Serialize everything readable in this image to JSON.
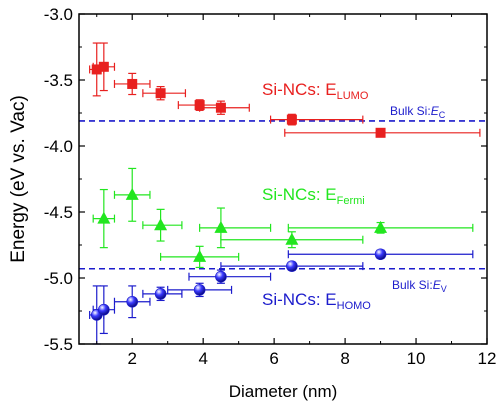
{
  "chart_data": {
    "type": "scatter",
    "title": "",
    "xlabel": "Diameter (nm)",
    "ylabel": "Energy (eV vs. Vac)",
    "xlim": [
      0.5,
      12
    ],
    "ylim": [
      -5.5,
      -3.0
    ],
    "x_ticks": [
      2,
      4,
      6,
      8,
      10,
      12
    ],
    "y_ticks": [
      -3.0,
      -3.5,
      -4.0,
      -4.5,
      -5.0,
      -5.5
    ],
    "x_tick_labels": [
      "2",
      "4",
      "6",
      "8",
      "10",
      "12"
    ],
    "y_tick_labels": [
      "-3.0",
      "-3.5",
      "-4.0",
      "-4.5",
      "-5.0",
      "-5.5"
    ],
    "grid": false,
    "series": [
      {
        "name": "Si-NCs: E_LUMO",
        "label_main": "Si-NCs: E",
        "label_sub": "LUMO",
        "color": "#e8201f",
        "marker": "square",
        "points": [
          {
            "x": 1.0,
            "y": -3.42,
            "xerr": [
              0.2,
              0.2
            ],
            "yerr": [
              0.2,
              0.2
            ]
          },
          {
            "x": 1.2,
            "y": -3.4,
            "xerr": [
              0.3,
              0.3
            ],
            "yerr": [
              0.18,
              0.18
            ]
          },
          {
            "x": 2.0,
            "y": -3.53,
            "xerr": [
              0.5,
              0.5
            ],
            "yerr": [
              0.08,
              0.08
            ]
          },
          {
            "x": 2.8,
            "y": -3.6,
            "xerr": [
              0.5,
              0.7
            ],
            "yerr": [
              0.05,
              0.05
            ]
          },
          {
            "x": 3.9,
            "y": -3.69,
            "xerr": [
              0.6,
              0.6
            ],
            "yerr": [
              0.04,
              0.04
            ]
          },
          {
            "x": 4.5,
            "y": -3.71,
            "xerr": [
              0.6,
              0.8
            ],
            "yerr": [
              0.05,
              0.05
            ]
          },
          {
            "x": 6.5,
            "y": -3.8,
            "xerr": [
              0.6,
              2.0
            ],
            "yerr": [
              0.04,
              0.04
            ]
          },
          {
            "x": 9.0,
            "y": -3.9,
            "xerr": [
              2.7,
              2.8
            ],
            "yerr": [
              0.03,
              0.03
            ]
          }
        ]
      },
      {
        "name": "Si-NCs: E_Fermi",
        "label_main": "Si-NCs: E",
        "label_sub": "Fermi",
        "color": "#22e61f",
        "marker": "triangle",
        "points": [
          {
            "x": 1.2,
            "y": -4.55,
            "xerr": [
              0.3,
              0.3
            ],
            "yerr": [
              0.22,
              0.22
            ]
          },
          {
            "x": 2.0,
            "y": -4.37,
            "xerr": [
              0.5,
              0.5
            ],
            "yerr": [
              0.2,
              0.2
            ]
          },
          {
            "x": 2.8,
            "y": -4.6,
            "xerr": [
              0.5,
              0.6
            ],
            "yerr": [
              0.12,
              0.12
            ]
          },
          {
            "x": 3.9,
            "y": -4.84,
            "xerr": [
              1.1,
              1.1
            ],
            "yerr": [
              0.08,
              0.08
            ]
          },
          {
            "x": 4.5,
            "y": -4.62,
            "xerr": [
              0.6,
              1.4
            ],
            "yerr": [
              0.15,
              0.15
            ]
          },
          {
            "x": 6.5,
            "y": -4.71,
            "xerr": [
              2.0,
              2.0
            ],
            "yerr": [
              0.06,
              0.06
            ]
          },
          {
            "x": 9.0,
            "y": -4.62,
            "xerr": [
              2.6,
              2.6
            ],
            "yerr": [
              0.04,
              0.04
            ]
          }
        ]
      },
      {
        "name": "Si-NCs: E_HOMO",
        "label_main": "Si-NCs: E",
        "label_sub": "HOMO",
        "color": "#1c1ccc",
        "marker": "sphere",
        "points": [
          {
            "x": 1.0,
            "y": -5.28,
            "xerr": [
              0.2,
              0.2
            ],
            "yerr": [
              0.22,
              0.22
            ]
          },
          {
            "x": 1.2,
            "y": -5.24,
            "xerr": [
              0.3,
              0.3
            ],
            "yerr": [
              0.18,
              0.18
            ]
          },
          {
            "x": 2.0,
            "y": -5.18,
            "xerr": [
              0.5,
              0.5
            ],
            "yerr": [
              0.12,
              0.12
            ]
          },
          {
            "x": 2.8,
            "y": -5.12,
            "xerr": [
              0.5,
              0.6
            ],
            "yerr": [
              0.05,
              0.05
            ]
          },
          {
            "x": 3.9,
            "y": -5.09,
            "xerr": [
              0.9,
              0.9
            ],
            "yerr": [
              0.05,
              0.05
            ]
          },
          {
            "x": 4.5,
            "y": -4.99,
            "xerr": [
              0.9,
              1.4
            ],
            "yerr": [
              0.05,
              0.05
            ]
          },
          {
            "x": 6.5,
            "y": -4.91,
            "xerr": [
              2.0,
              2.0
            ],
            "yerr": [
              0.03,
              0.03
            ]
          },
          {
            "x": 9.0,
            "y": -4.82,
            "xerr": [
              2.6,
              2.6
            ],
            "yerr": [
              0.03,
              0.03
            ]
          }
        ]
      }
    ],
    "reference_lines": [
      {
        "y": -3.81,
        "label_main": "Bulk Si:",
        "label_italic": "E",
        "label_sub": "C",
        "color": "#1c1ccc",
        "style": "dashed"
      },
      {
        "y": -4.93,
        "label_main": "Bulk Si:",
        "label_italic": "E",
        "label_sub": "V",
        "color": "#1c1ccc",
        "style": "dashed"
      }
    ]
  }
}
